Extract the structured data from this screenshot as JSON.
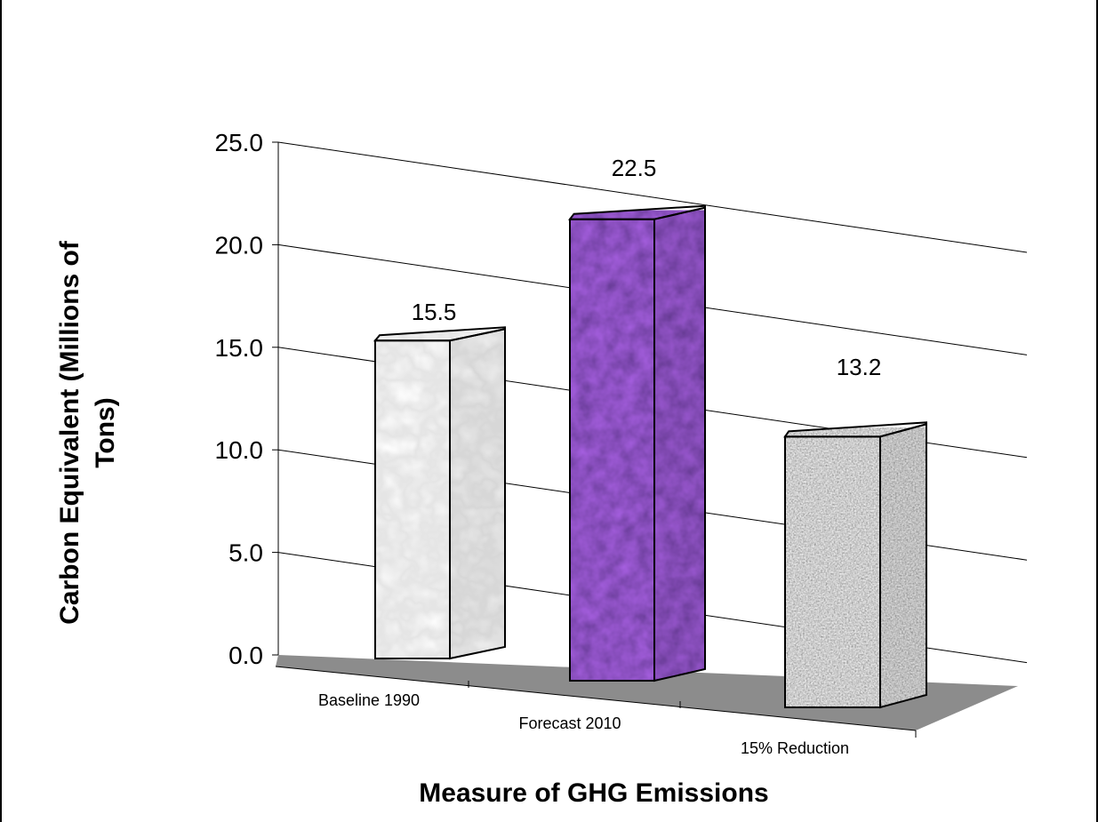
{
  "chart_data": {
    "type": "bar",
    "title": "",
    "xlabel": "Measure of GHG Emissions",
    "ylabel_lines": [
      "Carbon Equivalent (Millions of",
      "Tons)"
    ],
    "categories": [
      "Baseline 1990",
      "Forecast 2010",
      "15% Reduction"
    ],
    "values": [
      15.5,
      22.5,
      13.2
    ],
    "value_labels": [
      "15.5",
      "22.5",
      "13.2"
    ],
    "ylim": [
      0,
      25
    ],
    "yticks": [
      "0.0",
      "5.0",
      "10.0",
      "15.0",
      "20.0",
      "25.0"
    ],
    "grid": true,
    "legend": "none",
    "bar_colors": [
      "#f2f2f2",
      "#4a1a8a",
      "#b8b8b8"
    ],
    "floor_color": "#8c8c8c"
  }
}
